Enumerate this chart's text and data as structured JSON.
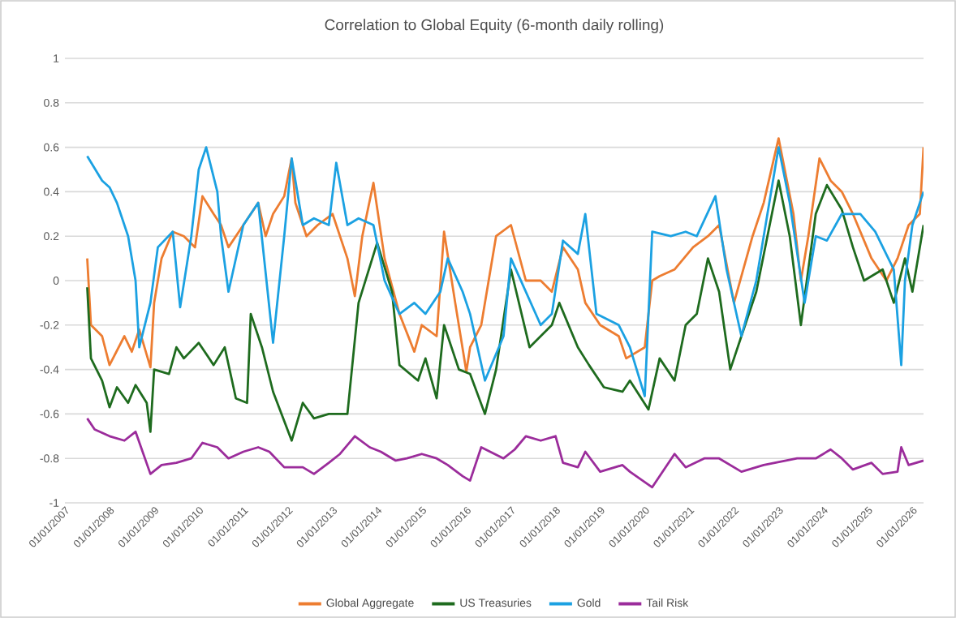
{
  "chart_data": {
    "type": "line",
    "title": "Correlation to Global Equity (6-month daily rolling)",
    "xlim": [
      "2007-01-01",
      "2026-04-01"
    ],
    "ylim": [
      -1,
      1
    ],
    "xticks": [
      {
        "value": "2007-01-01",
        "label": "01/01/2007"
      },
      {
        "value": "2008-01-01",
        "label": "01/01/2008"
      },
      {
        "value": "2009-01-01",
        "label": "01/01/2009"
      },
      {
        "value": "2010-01-01",
        "label": "01/01/2010"
      },
      {
        "value": "2011-01-01",
        "label": "01/01/2011"
      },
      {
        "value": "2012-01-01",
        "label": "01/01/2012"
      },
      {
        "value": "2013-01-01",
        "label": "01/01/2013"
      },
      {
        "value": "2014-01-01",
        "label": "01/01/2014"
      },
      {
        "value": "2015-01-01",
        "label": "01/01/2015"
      },
      {
        "value": "2016-01-01",
        "label": "01/01/2016"
      },
      {
        "value": "2017-01-01",
        "label": "01/01/2017"
      },
      {
        "value": "2018-01-01",
        "label": "01/01/2018"
      },
      {
        "value": "2019-01-01",
        "label": "01/01/2019"
      },
      {
        "value": "2020-01-01",
        "label": "01/01/2020"
      },
      {
        "value": "2021-01-01",
        "label": "01/01/2021"
      },
      {
        "value": "2022-01-01",
        "label": "01/01/2022"
      },
      {
        "value": "2023-01-01",
        "label": "01/01/2023"
      },
      {
        "value": "2024-01-01",
        "label": "01/01/2024"
      },
      {
        "value": "2025-01-01",
        "label": "01/01/2025"
      },
      {
        "value": "2026-01-01",
        "label": "01/01/2026"
      }
    ],
    "yticks": [
      -1,
      -0.8,
      -0.6,
      -0.4,
      -0.2,
      0,
      0.2,
      0.4,
      0.6,
      0.8,
      1
    ],
    "grid": "y",
    "legend": "bottom",
    "marker": "none",
    "line_style": "solid",
    "series": [
      {
        "name": "Global Aggregate",
        "color": "#ed7d31",
        "x": [
          "2007-07",
          "2007-08",
          "2007-11",
          "2008-01",
          "2008-05",
          "2008-07",
          "2008-09",
          "2008-12",
          "2009-01",
          "2009-03",
          "2009-06",
          "2009-09",
          "2009-12",
          "2010-02",
          "2010-05",
          "2010-07",
          "2010-09",
          "2011-01",
          "2011-05",
          "2011-07",
          "2011-09",
          "2011-12",
          "2012-02",
          "2012-03",
          "2012-06",
          "2012-09",
          "2013-01",
          "2013-05",
          "2013-07",
          "2013-09",
          "2013-12",
          "2014-03",
          "2014-07",
          "2014-11",
          "2015-01",
          "2015-05",
          "2015-07",
          "2015-10",
          "2016-01",
          "2016-02",
          "2016-05",
          "2016-09",
          "2017-01",
          "2017-05",
          "2017-09",
          "2017-12",
          "2018-03",
          "2018-07",
          "2018-09",
          "2019-01",
          "2019-06",
          "2019-08",
          "2020-01",
          "2020-03",
          "2020-05",
          "2020-09",
          "2021-02",
          "2021-06",
          "2021-09",
          "2022-01",
          "2022-06",
          "2022-09",
          "2023-01",
          "2023-05",
          "2023-07",
          "2023-09",
          "2023-12",
          "2024-03",
          "2024-06",
          "2024-09",
          "2025-02",
          "2025-06",
          "2025-09",
          "2025-12",
          "2026-03",
          "2026-04"
        ],
        "values": [
          0.1,
          -0.2,
          -0.25,
          -0.38,
          -0.25,
          -0.32,
          -0.22,
          -0.39,
          -0.1,
          0.1,
          0.22,
          0.2,
          0.15,
          0.38,
          0.3,
          0.25,
          0.15,
          0.25,
          0.35,
          0.2,
          0.3,
          0.38,
          0.55,
          0.35,
          0.2,
          0.25,
          0.3,
          0.1,
          -0.07,
          0.2,
          0.44,
          0.1,
          -0.15,
          -0.32,
          -0.2,
          -0.25,
          0.22,
          -0.1,
          -0.41,
          -0.3,
          -0.2,
          0.2,
          0.25,
          0.0,
          0.0,
          -0.05,
          0.15,
          0.05,
          -0.1,
          -0.2,
          -0.25,
          -0.35,
          -0.3,
          0.0,
          0.02,
          0.05,
          0.15,
          0.2,
          0.25,
          -0.1,
          0.2,
          0.35,
          0.64,
          0.3,
          0.0,
          0.2,
          0.55,
          0.45,
          0.4,
          0.3,
          0.1,
          0.0,
          0.1,
          0.25,
          0.3,
          0.6
        ]
      },
      {
        "name": "US Treasuries",
        "color": "#1e6b1e",
        "x": [
          "2007-07",
          "2007-08",
          "2007-11",
          "2008-01",
          "2008-03",
          "2008-06",
          "2008-08",
          "2008-11",
          "2008-12",
          "2009-01",
          "2009-05",
          "2009-07",
          "2009-09",
          "2010-01",
          "2010-05",
          "2010-08",
          "2010-11",
          "2011-02",
          "2011-03",
          "2011-06",
          "2011-09",
          "2012-02",
          "2012-05",
          "2012-08",
          "2012-12",
          "2013-05",
          "2013-08",
          "2014-01",
          "2014-05",
          "2014-07",
          "2014-12",
          "2015-02",
          "2015-05",
          "2015-07",
          "2015-11",
          "2016-02",
          "2016-06",
          "2016-09",
          "2017-01",
          "2017-06",
          "2017-12",
          "2018-02",
          "2018-07",
          "2018-10",
          "2019-02",
          "2019-07",
          "2019-09",
          "2020-02",
          "2020-05",
          "2020-09",
          "2020-12",
          "2021-03",
          "2021-06",
          "2021-09",
          "2021-12",
          "2022-03",
          "2022-07",
          "2022-10",
          "2023-01",
          "2023-04",
          "2023-07",
          "2023-11",
          "2024-02",
          "2024-06",
          "2024-09",
          "2024-12",
          "2025-05",
          "2025-08",
          "2025-11",
          "2026-01",
          "2026-04"
        ],
        "values": [
          -0.03,
          -0.35,
          -0.45,
          -0.57,
          -0.48,
          -0.55,
          -0.47,
          -0.55,
          -0.68,
          -0.4,
          -0.42,
          -0.3,
          -0.35,
          -0.28,
          -0.38,
          -0.3,
          -0.53,
          -0.55,
          -0.15,
          -0.3,
          -0.5,
          -0.72,
          -0.55,
          -0.62,
          -0.6,
          -0.6,
          -0.1,
          0.17,
          -0.05,
          -0.38,
          -0.45,
          -0.35,
          -0.53,
          -0.2,
          -0.4,
          -0.42,
          -0.6,
          -0.4,
          0.05,
          -0.3,
          -0.2,
          -0.1,
          -0.3,
          -0.38,
          -0.48,
          -0.5,
          -0.45,
          -0.58,
          -0.35,
          -0.45,
          -0.2,
          -0.15,
          0.1,
          -0.05,
          -0.4,
          -0.25,
          -0.05,
          0.2,
          0.45,
          0.2,
          -0.2,
          0.3,
          0.43,
          0.32,
          0.15,
          0.0,
          0.05,
          -0.1,
          0.1,
          -0.05,
          0.25
        ]
      },
      {
        "name": "Gold",
        "color": "#1ba1e2",
        "x": [
          "2007-07",
          "2007-11",
          "2008-01",
          "2008-03",
          "2008-06",
          "2008-08",
          "2008-09",
          "2008-12",
          "2009-02",
          "2009-06",
          "2009-08",
          "2009-11",
          "2010-01",
          "2010-03",
          "2010-06",
          "2010-07",
          "2010-09",
          "2011-01",
          "2011-05",
          "2011-09",
          "2011-12",
          "2012-02",
          "2012-05",
          "2012-08",
          "2012-12",
          "2013-02",
          "2013-05",
          "2013-08",
          "2013-12",
          "2014-03",
          "2014-07",
          "2014-11",
          "2015-02",
          "2015-06",
          "2015-08",
          "2015-12",
          "2016-02",
          "2016-06",
          "2016-11",
          "2017-01",
          "2017-05",
          "2017-09",
          "2017-12",
          "2018-03",
          "2018-07",
          "2018-09",
          "2018-12",
          "2019-06",
          "2019-09",
          "2020-01",
          "2020-03",
          "2020-08",
          "2020-12",
          "2021-03",
          "2021-08",
          "2021-11",
          "2022-03",
          "2022-07",
          "2022-10",
          "2023-01",
          "2023-04",
          "2023-08",
          "2023-11",
          "2024-02",
          "2024-06",
          "2024-11",
          "2025-03",
          "2025-08",
          "2025-10",
          "2025-11",
          "2026-01",
          "2026-04"
        ],
        "values": [
          0.56,
          0.45,
          0.42,
          0.35,
          0.2,
          0.0,
          -0.3,
          -0.1,
          0.15,
          0.22,
          -0.12,
          0.2,
          0.5,
          0.6,
          0.4,
          0.2,
          -0.05,
          0.25,
          0.35,
          -0.28,
          0.2,
          0.55,
          0.25,
          0.28,
          0.25,
          0.53,
          0.25,
          0.28,
          0.25,
          0.0,
          -0.15,
          -0.1,
          -0.15,
          -0.05,
          0.1,
          -0.05,
          -0.15,
          -0.45,
          -0.25,
          0.1,
          -0.05,
          -0.2,
          -0.15,
          0.18,
          0.12,
          0.3,
          -0.15,
          -0.2,
          -0.3,
          -0.52,
          0.22,
          0.2,
          0.22,
          0.2,
          0.38,
          0.05,
          -0.25,
          0.0,
          0.3,
          0.6,
          0.35,
          -0.1,
          0.2,
          0.18,
          0.3,
          0.3,
          0.22,
          0.05,
          -0.38,
          0.0,
          0.25,
          0.4
        ]
      },
      {
        "name": "Tail Risk",
        "color": "#9b2c9b",
        "x": [
          "2007-07",
          "2007-09",
          "2008-01",
          "2008-05",
          "2008-08",
          "2008-12",
          "2009-03",
          "2009-07",
          "2009-11",
          "2010-02",
          "2010-06",
          "2010-09",
          "2011-01",
          "2011-05",
          "2011-08",
          "2011-12",
          "2012-05",
          "2012-08",
          "2012-12",
          "2013-03",
          "2013-07",
          "2013-11",
          "2014-02",
          "2014-06",
          "2014-09",
          "2015-01",
          "2015-05",
          "2015-08",
          "2015-12",
          "2016-02",
          "2016-05",
          "2016-11",
          "2017-02",
          "2017-05",
          "2017-09",
          "2018-01",
          "2018-03",
          "2018-07",
          "2018-09",
          "2019-01",
          "2019-07",
          "2019-09",
          "2020-03",
          "2020-09",
          "2020-12",
          "2021-05",
          "2021-09",
          "2022-03",
          "2022-09",
          "2022-12",
          "2023-06",
          "2023-11",
          "2024-03",
          "2024-06",
          "2024-09",
          "2025-02",
          "2025-05",
          "2025-09",
          "2025-10",
          "2025-12",
          "2026-04"
        ],
        "values": [
          -0.62,
          -0.67,
          -0.7,
          -0.72,
          -0.68,
          -0.87,
          -0.83,
          -0.82,
          -0.8,
          -0.73,
          -0.75,
          -0.8,
          -0.77,
          -0.75,
          -0.77,
          -0.84,
          -0.84,
          -0.87,
          -0.82,
          -0.78,
          -0.7,
          -0.75,
          -0.77,
          -0.81,
          -0.8,
          -0.78,
          -0.8,
          -0.83,
          -0.88,
          -0.9,
          -0.75,
          -0.8,
          -0.76,
          -0.7,
          -0.72,
          -0.7,
          -0.82,
          -0.84,
          -0.77,
          -0.86,
          -0.83,
          -0.86,
          -0.93,
          -0.78,
          -0.84,
          -0.8,
          -0.8,
          -0.86,
          -0.83,
          -0.82,
          -0.8,
          -0.8,
          -0.76,
          -0.8,
          -0.85,
          -0.82,
          -0.87,
          -0.86,
          -0.75,
          -0.83,
          -0.81
        ]
      }
    ]
  }
}
